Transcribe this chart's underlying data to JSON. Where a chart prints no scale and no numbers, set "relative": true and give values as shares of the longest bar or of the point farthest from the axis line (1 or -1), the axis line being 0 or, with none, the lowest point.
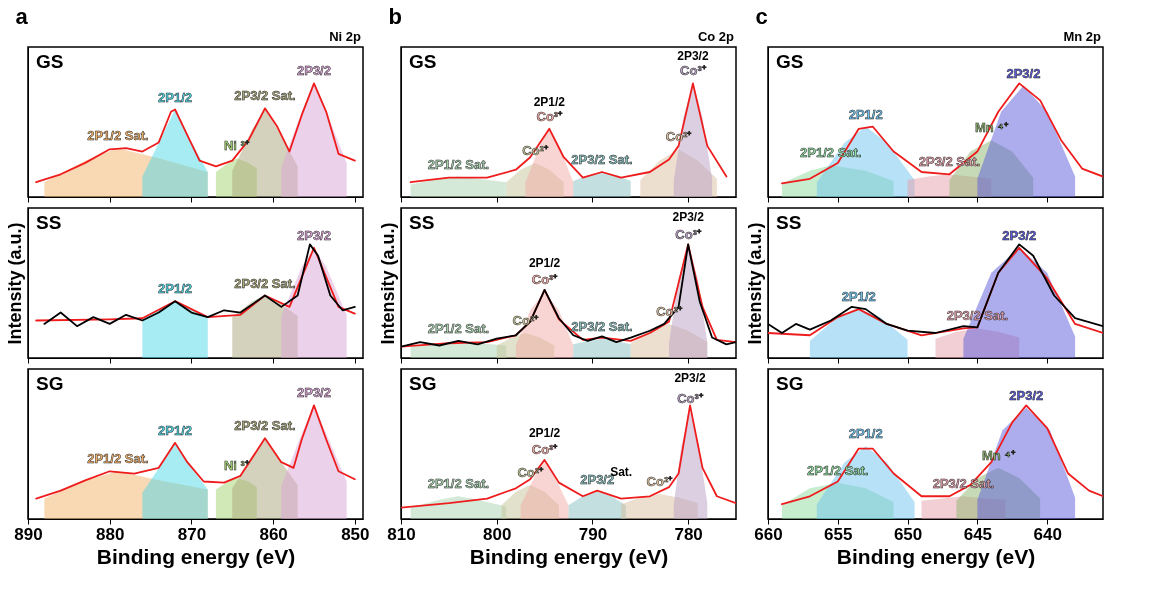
{
  "chart_data": [
    {
      "type": "line",
      "relative": true,
      "title": "a",
      "subtitle": "Ni 2p",
      "xlim": [
        890,
        849
      ],
      "xticks": [
        890,
        880,
        870,
        860,
        850
      ],
      "tick_labels": false,
      "annotations": [
        "GS"
      ],
      "series": [
        {
          "type": "area",
          "name": "2P1/2 Sat.",
          "color": "#f4b26a",
          "x": [
            888,
            883,
            879,
            874,
            868
          ],
          "values": [
            0.13,
            0.32,
            0.43,
            0.34,
            0.22
          ]
        },
        {
          "type": "area",
          "name": "2P1/2",
          "color": "#4fd8e8",
          "x": [
            876,
            873.5,
            872,
            870.5,
            868
          ],
          "values": [
            0.18,
            0.55,
            0.77,
            0.55,
            0.22
          ]
        },
        {
          "type": "area",
          "name": "Ni ³⁺",
          "color": "#a4d36e",
          "x": [
            867,
            865.5,
            864.5,
            863,
            862
          ],
          "values": [
            0.22,
            0.3,
            0.34,
            0.3,
            0.25
          ]
        },
        {
          "type": "area",
          "name": "2P3/2 Sat.",
          "color": "#a9a67a",
          "x": [
            865,
            862.5,
            861,
            859.5,
            857
          ],
          "values": [
            0.23,
            0.6,
            0.78,
            0.6,
            0.27
          ]
        },
        {
          "type": "area",
          "name": "2P3/2",
          "color": "#d9a3d6",
          "x": [
            859,
            856.5,
            855,
            853.5,
            851
          ],
          "values": [
            0.26,
            0.75,
            1.0,
            0.75,
            0.3
          ]
        },
        {
          "color": "#ee1c1c",
          "x": [
            889,
            886,
            883,
            880,
            878,
            876,
            874,
            872.5,
            872,
            871,
            869,
            867,
            865,
            863,
            861,
            859.5,
            858,
            856.5,
            855,
            853.5,
            852,
            850
          ],
          "values": [
            0.13,
            0.2,
            0.3,
            0.42,
            0.43,
            0.4,
            0.48,
            0.75,
            0.77,
            0.62,
            0.32,
            0.27,
            0.32,
            0.5,
            0.78,
            0.62,
            0.4,
            0.72,
            1.0,
            0.75,
            0.38,
            0.32
          ]
        }
      ]
    },
    {
      "type": "line",
      "relative": true,
      "title": "b",
      "subtitle": "Co 2p",
      "xlim": [
        810,
        775
      ],
      "xticks": [
        810,
        800,
        790,
        780
      ],
      "tick_labels": false,
      "annotations": [
        "GS",
        {
          "text": "2P1/2",
          "x": 794.5,
          "y": 0.6
        },
        {
          "text": "2P3/2",
          "x": 779.5,
          "y": 1.0
        }
      ],
      "series": [
        {
          "type": "area",
          "name": "2P1/2 Sat.",
          "color": "#a9d3b0",
          "x": [
            809,
            806,
            804,
            802,
            799
          ],
          "values": [
            0.11,
            0.16,
            0.18,
            0.16,
            0.13
          ]
        },
        {
          "type": "area",
          "name": "Co²⁺",
          "color": "#c5c59a",
          "x": [
            799,
            797.5,
            796,
            794.5,
            793
          ],
          "values": [
            0.13,
            0.24,
            0.3,
            0.24,
            0.13
          ]
        },
        {
          "type": "area",
          "name": "Co³⁺",
          "color": "#f2aaa5",
          "x": [
            797,
            795.5,
            794.5,
            793.5,
            792
          ],
          "values": [
            0.13,
            0.45,
            0.6,
            0.45,
            0.13
          ]
        },
        {
          "type": "area",
          "name": "2P3/2 Sat.",
          "color": "#88bfbf",
          "x": [
            792,
            790.5,
            789,
            787.5,
            786
          ],
          "values": [
            0.14,
            0.19,
            0.22,
            0.19,
            0.14
          ]
        },
        {
          "type": "area",
          "name": "Co²⁺",
          "color": "#dcc0a0",
          "x": [
            785,
            783,
            781,
            779,
            777
          ],
          "values": [
            0.15,
            0.32,
            0.42,
            0.32,
            0.16
          ]
        },
        {
          "type": "area",
          "name": "Co³⁺",
          "color": "#b9a0c4",
          "x": [
            781.5,
            780.5,
            779.5,
            778.5,
            777.5
          ],
          "values": [
            0.15,
            0.7,
            1.0,
            0.7,
            0.16
          ]
        },
        {
          "color": "#ee1c1c",
          "x": [
            809,
            805,
            801,
            798,
            796.5,
            794.5,
            793,
            791,
            789,
            787,
            784,
            782,
            781,
            779.5,
            778,
            776
          ],
          "values": [
            0.13,
            0.17,
            0.17,
            0.24,
            0.35,
            0.6,
            0.35,
            0.17,
            0.22,
            0.17,
            0.22,
            0.33,
            0.45,
            1.0,
            0.45,
            0.18
          ]
        }
      ]
    },
    {
      "type": "line",
      "relative": true,
      "title": "c",
      "subtitle": "Mn 2p",
      "xlim": [
        660,
        636
      ],
      "xticks": [
        660,
        655,
        650,
        645,
        640
      ],
      "tick_labels": false,
      "annotations": [
        "GS"
      ],
      "series": [
        {
          "type": "area",
          "name": "2P1/2 Sat.",
          "color": "#8fdca0",
          "x": [
            659,
            657,
            655.5,
            653,
            651
          ],
          "values": [
            0.12,
            0.23,
            0.28,
            0.23,
            0.14
          ]
        },
        {
          "type": "area",
          "name": "2P1/2",
          "color": "#6fc3ee",
          "x": [
            656.5,
            654.5,
            653,
            651.5,
            649.5
          ],
          "values": [
            0.13,
            0.48,
            0.62,
            0.48,
            0.15
          ]
        },
        {
          "type": "area",
          "name": "2P3/2 Sat.",
          "color": "#e5a0aa",
          "x": [
            650,
            648.5,
            647,
            645.5,
            644
          ],
          "values": [
            0.15,
            0.18,
            0.2,
            0.18,
            0.16
          ]
        },
        {
          "type": "area",
          "name": "Mn ⁴⁺",
          "color": "#8fb56f",
          "x": [
            647,
            645.5,
            644,
            642.5,
            641
          ],
          "values": [
            0.15,
            0.4,
            0.5,
            0.4,
            0.17
          ]
        },
        {
          "type": "area",
          "name": "2P3/2",
          "color": "#5b5bdc",
          "x": [
            645,
            643.3,
            641.7,
            640,
            638
          ],
          "values": [
            0.16,
            0.75,
            0.98,
            0.75,
            0.18
          ]
        },
        {
          "color": "#ee1c1c",
          "x": [
            659,
            657,
            655,
            653.5,
            652.5,
            651,
            649,
            647,
            645,
            643.5,
            642,
            640.5,
            639,
            637.5,
            636
          ],
          "values": [
            0.12,
            0.16,
            0.3,
            0.6,
            0.62,
            0.4,
            0.22,
            0.2,
            0.4,
            0.75,
            1.0,
            0.85,
            0.5,
            0.25,
            0.18
          ]
        }
      ]
    },
    {
      "type": "line",
      "relative": true,
      "ylabel": "Intensity (a.u.)",
      "xlim": [
        890,
        849
      ],
      "xticks": [
        890,
        880,
        870,
        860,
        850
      ],
      "tick_labels": false,
      "annotations": [
        "SS"
      ],
      "series": [
        {
          "type": "area",
          "name": "2P1/2",
          "color": "#4fd8e8",
          "x": [
            876,
            873.5,
            872,
            870.5,
            868
          ],
          "values": [
            0.34,
            0.44,
            0.5,
            0.44,
            0.35
          ]
        },
        {
          "type": "area",
          "name": "2P3/2 Sat.",
          "color": "#a9a67a",
          "x": [
            865,
            862.5,
            861,
            859.5,
            857
          ],
          "values": [
            0.36,
            0.5,
            0.55,
            0.5,
            0.37
          ]
        },
        {
          "type": "area",
          "name": "2P3/2",
          "color": "#d9a3d6",
          "x": [
            859,
            856.5,
            855,
            853.5,
            851
          ],
          "values": [
            0.37,
            0.8,
            0.97,
            0.8,
            0.38
          ]
        },
        {
          "color": "#ee1c1c",
          "x": [
            889,
            880,
            876,
            872,
            868,
            864,
            861,
            858,
            855,
            852,
            850
          ],
          "values": [
            0.33,
            0.34,
            0.35,
            0.5,
            0.36,
            0.38,
            0.55,
            0.45,
            0.97,
            0.45,
            0.39
          ]
        },
        {
          "color": "#000000",
          "x": [
            888,
            886,
            884,
            882,
            880,
            878,
            876,
            874,
            872,
            870,
            868,
            866,
            864,
            862,
            861,
            859,
            857,
            855.5,
            854.5,
            853,
            851.5,
            850
          ],
          "values": [
            0.3,
            0.4,
            0.28,
            0.36,
            0.3,
            0.38,
            0.33,
            0.4,
            0.5,
            0.4,
            0.36,
            0.42,
            0.4,
            0.5,
            0.55,
            0.45,
            0.55,
            1.0,
            0.9,
            0.55,
            0.42,
            0.45
          ]
        }
      ]
    },
    {
      "type": "line",
      "relative": true,
      "ylabel": "Intensity (a.u.)",
      "xlim": [
        810,
        775
      ],
      "xticks": [
        810,
        800,
        790,
        780
      ],
      "tick_labels": false,
      "annotations": [
        "SS",
        {
          "text": "2P1/2",
          "x": 795,
          "y": 0.6
        },
        {
          "text": "2P3/2",
          "x": 780,
          "y": 1.0
        }
      ],
      "series": [
        {
          "type": "area",
          "name": "2P1/2 Sat.",
          "color": "#a9d3b0",
          "x": [
            809,
            806,
            804,
            802,
            799
          ],
          "values": [
            0.1,
            0.13,
            0.15,
            0.13,
            0.11
          ]
        },
        {
          "type": "area",
          "name": "Co²⁺",
          "color": "#c5c59a",
          "x": [
            800,
            798.5,
            797,
            795.5,
            794
          ],
          "values": [
            0.11,
            0.18,
            0.22,
            0.18,
            0.11
          ]
        },
        {
          "type": "area",
          "name": "Co³⁺",
          "color": "#f2aaa5",
          "x": [
            798,
            796.5,
            795,
            793.5,
            792
          ],
          "values": [
            0.11,
            0.42,
            0.58,
            0.42,
            0.11
          ]
        },
        {
          "type": "area",
          "name": "2P3/2 Sat.",
          "color": "#88bfbf",
          "x": [
            792,
            790.5,
            789,
            787.5,
            786
          ],
          "values": [
            0.12,
            0.15,
            0.17,
            0.15,
            0.12
          ]
        },
        {
          "type": "area",
          "name": "Co²⁺",
          "color": "#dcc0a0",
          "x": [
            786,
            784,
            782,
            780,
            778
          ],
          "values": [
            0.13,
            0.24,
            0.3,
            0.24,
            0.14
          ]
        },
        {
          "type": "area",
          "name": "Co³⁺",
          "color": "#b9a0c4",
          "x": [
            782,
            781,
            780,
            779,
            778
          ],
          "values": [
            0.13,
            0.7,
            0.98,
            0.7,
            0.14
          ]
        },
        {
          "color": "#ee1c1c",
          "x": [
            810,
            805,
            801,
            798,
            796.5,
            795,
            793.5,
            791,
            789,
            786,
            784,
            782,
            780,
            778.5,
            777,
            775
          ],
          "values": [
            0.1,
            0.13,
            0.14,
            0.2,
            0.32,
            0.6,
            0.34,
            0.16,
            0.18,
            0.15,
            0.22,
            0.32,
            1.0,
            0.45,
            0.16,
            0.14
          ]
        },
        {
          "color": "#000000",
          "x": [
            810,
            808,
            806,
            804,
            802,
            800,
            798,
            796.5,
            795,
            793.5,
            792,
            790.5,
            789,
            787.5,
            786,
            784,
            782.5,
            781,
            780,
            778.8,
            777.5,
            776,
            775
          ],
          "values": [
            0.1,
            0.14,
            0.11,
            0.15,
            0.12,
            0.17,
            0.2,
            0.32,
            0.6,
            0.35,
            0.2,
            0.15,
            0.19,
            0.14,
            0.18,
            0.24,
            0.3,
            0.45,
            1.0,
            0.5,
            0.18,
            0.12,
            0.14
          ]
        }
      ]
    },
    {
      "type": "line",
      "relative": true,
      "ylabel": "Intensity (a.u.)",
      "xlim": [
        660,
        636
      ],
      "xticks": [
        660,
        655,
        650,
        645,
        640
      ],
      "tick_labels": false,
      "annotations": [
        "SS"
      ],
      "series": [
        {
          "type": "area",
          "name": "2P1/2",
          "color": "#6fc3ee",
          "x": [
            657,
            655,
            653.5,
            652,
            650
          ],
          "values": [
            0.15,
            0.36,
            0.43,
            0.36,
            0.16
          ]
        },
        {
          "type": "area",
          "name": "2P3/2 Sat.",
          "color": "#e5a0aa",
          "x": [
            648,
            646.5,
            645,
            643.5,
            642
          ],
          "values": [
            0.17,
            0.23,
            0.26,
            0.23,
            0.18
          ]
        },
        {
          "type": "area",
          "name": "2P3/2",
          "color": "#5b5bdc",
          "x": [
            646,
            644,
            642,
            640,
            638
          ],
          "values": [
            0.17,
            0.75,
            0.97,
            0.75,
            0.19
          ]
        },
        {
          "color": "#ee1c1c",
          "x": [
            660,
            657,
            655,
            653.5,
            651.5,
            649,
            646,
            645,
            643.5,
            642,
            640,
            638,
            636
          ],
          "values": [
            0.22,
            0.2,
            0.36,
            0.43,
            0.3,
            0.2,
            0.26,
            0.27,
            0.75,
            0.97,
            0.7,
            0.3,
            0.22
          ]
        },
        {
          "color": "#000000",
          "x": [
            660,
            659,
            658,
            657,
            655.5,
            654,
            653,
            651.5,
            650,
            648,
            646,
            645,
            643.5,
            642,
            641,
            639.5,
            638,
            636
          ],
          "values": [
            0.3,
            0.22,
            0.3,
            0.25,
            0.33,
            0.45,
            0.43,
            0.3,
            0.24,
            0.22,
            0.28,
            0.27,
            0.75,
            1.0,
            0.9,
            0.55,
            0.35,
            0.28
          ]
        }
      ]
    },
    {
      "type": "line",
      "relative": true,
      "xlabel": "Binding energy (eV)",
      "xlim": [
        890,
        849
      ],
      "xticks": [
        890,
        880,
        870,
        860,
        850
      ],
      "tick_labels": "x",
      "annotations": [
        "SG"
      ],
      "series": [
        {
          "type": "area",
          "name": "2P1/2 Sat.",
          "color": "#f4b26a",
          "x": [
            888,
            883,
            879,
            874,
            868
          ],
          "values": [
            0.18,
            0.34,
            0.42,
            0.34,
            0.26
          ]
        },
        {
          "type": "area",
          "name": "2P1/2",
          "color": "#4fd8e8",
          "x": [
            876,
            873.5,
            872,
            870.5,
            868
          ],
          "values": [
            0.23,
            0.5,
            0.67,
            0.5,
            0.26
          ]
        },
        {
          "type": "area",
          "name": "Ni ³⁺",
          "color": "#a4d36e",
          "x": [
            867,
            865.5,
            864.5,
            863,
            862
          ],
          "values": [
            0.26,
            0.33,
            0.36,
            0.33,
            0.28
          ]
        },
        {
          "type": "area",
          "name": "2P3/2 Sat.",
          "color": "#a9a67a",
          "x": [
            865,
            862.5,
            861,
            859.5,
            857
          ],
          "values": [
            0.27,
            0.55,
            0.71,
            0.55,
            0.3
          ]
        },
        {
          "type": "area",
          "name": "2P3/2",
          "color": "#d9a3d6",
          "x": [
            859,
            856.5,
            855,
            853.5,
            851
          ],
          "values": [
            0.29,
            0.75,
            1.0,
            0.75,
            0.33
          ]
        },
        {
          "color": "#ee1c1c",
          "x": [
            889,
            886,
            883,
            880,
            877,
            874,
            872,
            870.5,
            868.5,
            866,
            864,
            861,
            859,
            857.5,
            856.5,
            855,
            853.5,
            852,
            850
          ],
          "values": [
            0.18,
            0.25,
            0.34,
            0.42,
            0.4,
            0.45,
            0.67,
            0.5,
            0.33,
            0.32,
            0.38,
            0.71,
            0.5,
            0.45,
            0.7,
            1.0,
            0.7,
            0.42,
            0.35
          ]
        }
      ]
    },
    {
      "type": "line",
      "relative": true,
      "xlabel": "Binding energy (eV)",
      "xlim": [
        810,
        775
      ],
      "xticks": [
        810,
        800,
        790,
        780
      ],
      "tick_labels": "x",
      "annotations": [
        "SG",
        {
          "text": "2P1/2",
          "x": 795,
          "y": 0.52
        },
        {
          "text": "Sat.",
          "x": 787,
          "y": 0.18
        },
        {
          "text": "2P3/2",
          "x": 779.8,
          "y": 1.0
        }
      ],
      "series": [
        {
          "type": "area",
          "name": "2P1/2 Sat.",
          "color": "#a9d3b0",
          "x": [
            809,
            806,
            804,
            802,
            799
          ],
          "values": [
            0.1,
            0.17,
            0.2,
            0.17,
            0.11
          ]
        },
        {
          "type": "area",
          "name": "Co²⁺",
          "color": "#c5c59a",
          "x": [
            799.5,
            798,
            796.5,
            795,
            793.5
          ],
          "values": [
            0.12,
            0.24,
            0.3,
            0.24,
            0.12
          ]
        },
        {
          "type": "area",
          "name": "Co³⁺",
          "color": "#f2aaa5",
          "x": [
            797.5,
            796,
            795,
            794,
            792.5
          ],
          "values": [
            0.12,
            0.38,
            0.5,
            0.38,
            0.12
          ]
        },
        {
          "type": "area",
          "name": "2P3/2",
          "color": "#88bfbf",
          "x": [
            792.5,
            791,
            789.5,
            788,
            786.5
          ],
          "values": [
            0.12,
            0.2,
            0.24,
            0.2,
            0.12
          ]
        },
        {
          "type": "area",
          "name": "Co²⁺",
          "color": "#dcc0a0",
          "x": [
            787,
            785,
            783,
            781,
            779
          ],
          "values": [
            0.13,
            0.19,
            0.22,
            0.19,
            0.14
          ]
        },
        {
          "type": "area",
          "name": "Co³⁺",
          "color": "#b9a0c4",
          "x": [
            781.5,
            780.7,
            779.8,
            778.9,
            778
          ],
          "values": [
            0.13,
            0.65,
            0.95,
            0.65,
            0.14
          ]
        },
        {
          "color": "#ee1c1c",
          "x": [
            810,
            805,
            801,
            798,
            796.5,
            795,
            793.5,
            791,
            789.5,
            787,
            784,
            782,
            781,
            779.8,
            778.5,
            777,
            775
          ],
          "values": [
            0.1,
            0.14,
            0.18,
            0.27,
            0.35,
            0.52,
            0.32,
            0.2,
            0.25,
            0.18,
            0.2,
            0.28,
            0.4,
            1.0,
            0.45,
            0.2,
            0.14
          ]
        }
      ]
    },
    {
      "type": "line",
      "relative": true,
      "xlabel": "Binding energy (eV)",
      "xlim": [
        660,
        636
      ],
      "xticks": [
        660,
        655,
        650,
        645,
        640
      ],
      "tick_labels": "x",
      "annotations": [
        "SG"
      ],
      "series": [
        {
          "type": "area",
          "name": "2P1/2 Sat.",
          "color": "#8fdca0",
          "x": [
            659,
            657,
            655,
            653,
            651
          ],
          "values": [
            0.12,
            0.27,
            0.32,
            0.27,
            0.15
          ]
        },
        {
          "type": "area",
          "name": "2P1/2",
          "color": "#6fc3ee",
          "x": [
            656.5,
            654.5,
            653,
            651.5,
            649.5
          ],
          "values": [
            0.13,
            0.5,
            0.64,
            0.5,
            0.15
          ]
        },
        {
          "type": "area",
          "name": "2P3/2 Sat.",
          "color": "#e5a0aa",
          "x": [
            649,
            647.5,
            646,
            644.5,
            643
          ],
          "values": [
            0.16,
            0.18,
            0.2,
            0.18,
            0.17
          ]
        },
        {
          "type": "area",
          "name": "Mn ⁴⁺",
          "color": "#8fb56f",
          "x": [
            646.5,
            645,
            643.5,
            642,
            640.5
          ],
          "values": [
            0.16,
            0.36,
            0.45,
            0.36,
            0.18
          ]
        },
        {
          "type": "area",
          "name": "2P3/2",
          "color": "#5b5bdc",
          "x": [
            645,
            643.2,
            641.5,
            639.8,
            638
          ],
          "values": [
            0.17,
            0.78,
            0.98,
            0.78,
            0.19
          ]
        },
        {
          "color": "#ee1c1c",
          "x": [
            659,
            657,
            655,
            653.5,
            652.5,
            651,
            649,
            647,
            645.5,
            644,
            642.5,
            641.5,
            640,
            638.5,
            637,
            636
          ],
          "values": [
            0.13,
            0.2,
            0.33,
            0.62,
            0.62,
            0.4,
            0.2,
            0.2,
            0.3,
            0.5,
            0.85,
            1.0,
            0.8,
            0.4,
            0.25,
            0.2
          ]
        }
      ]
    }
  ]
}
